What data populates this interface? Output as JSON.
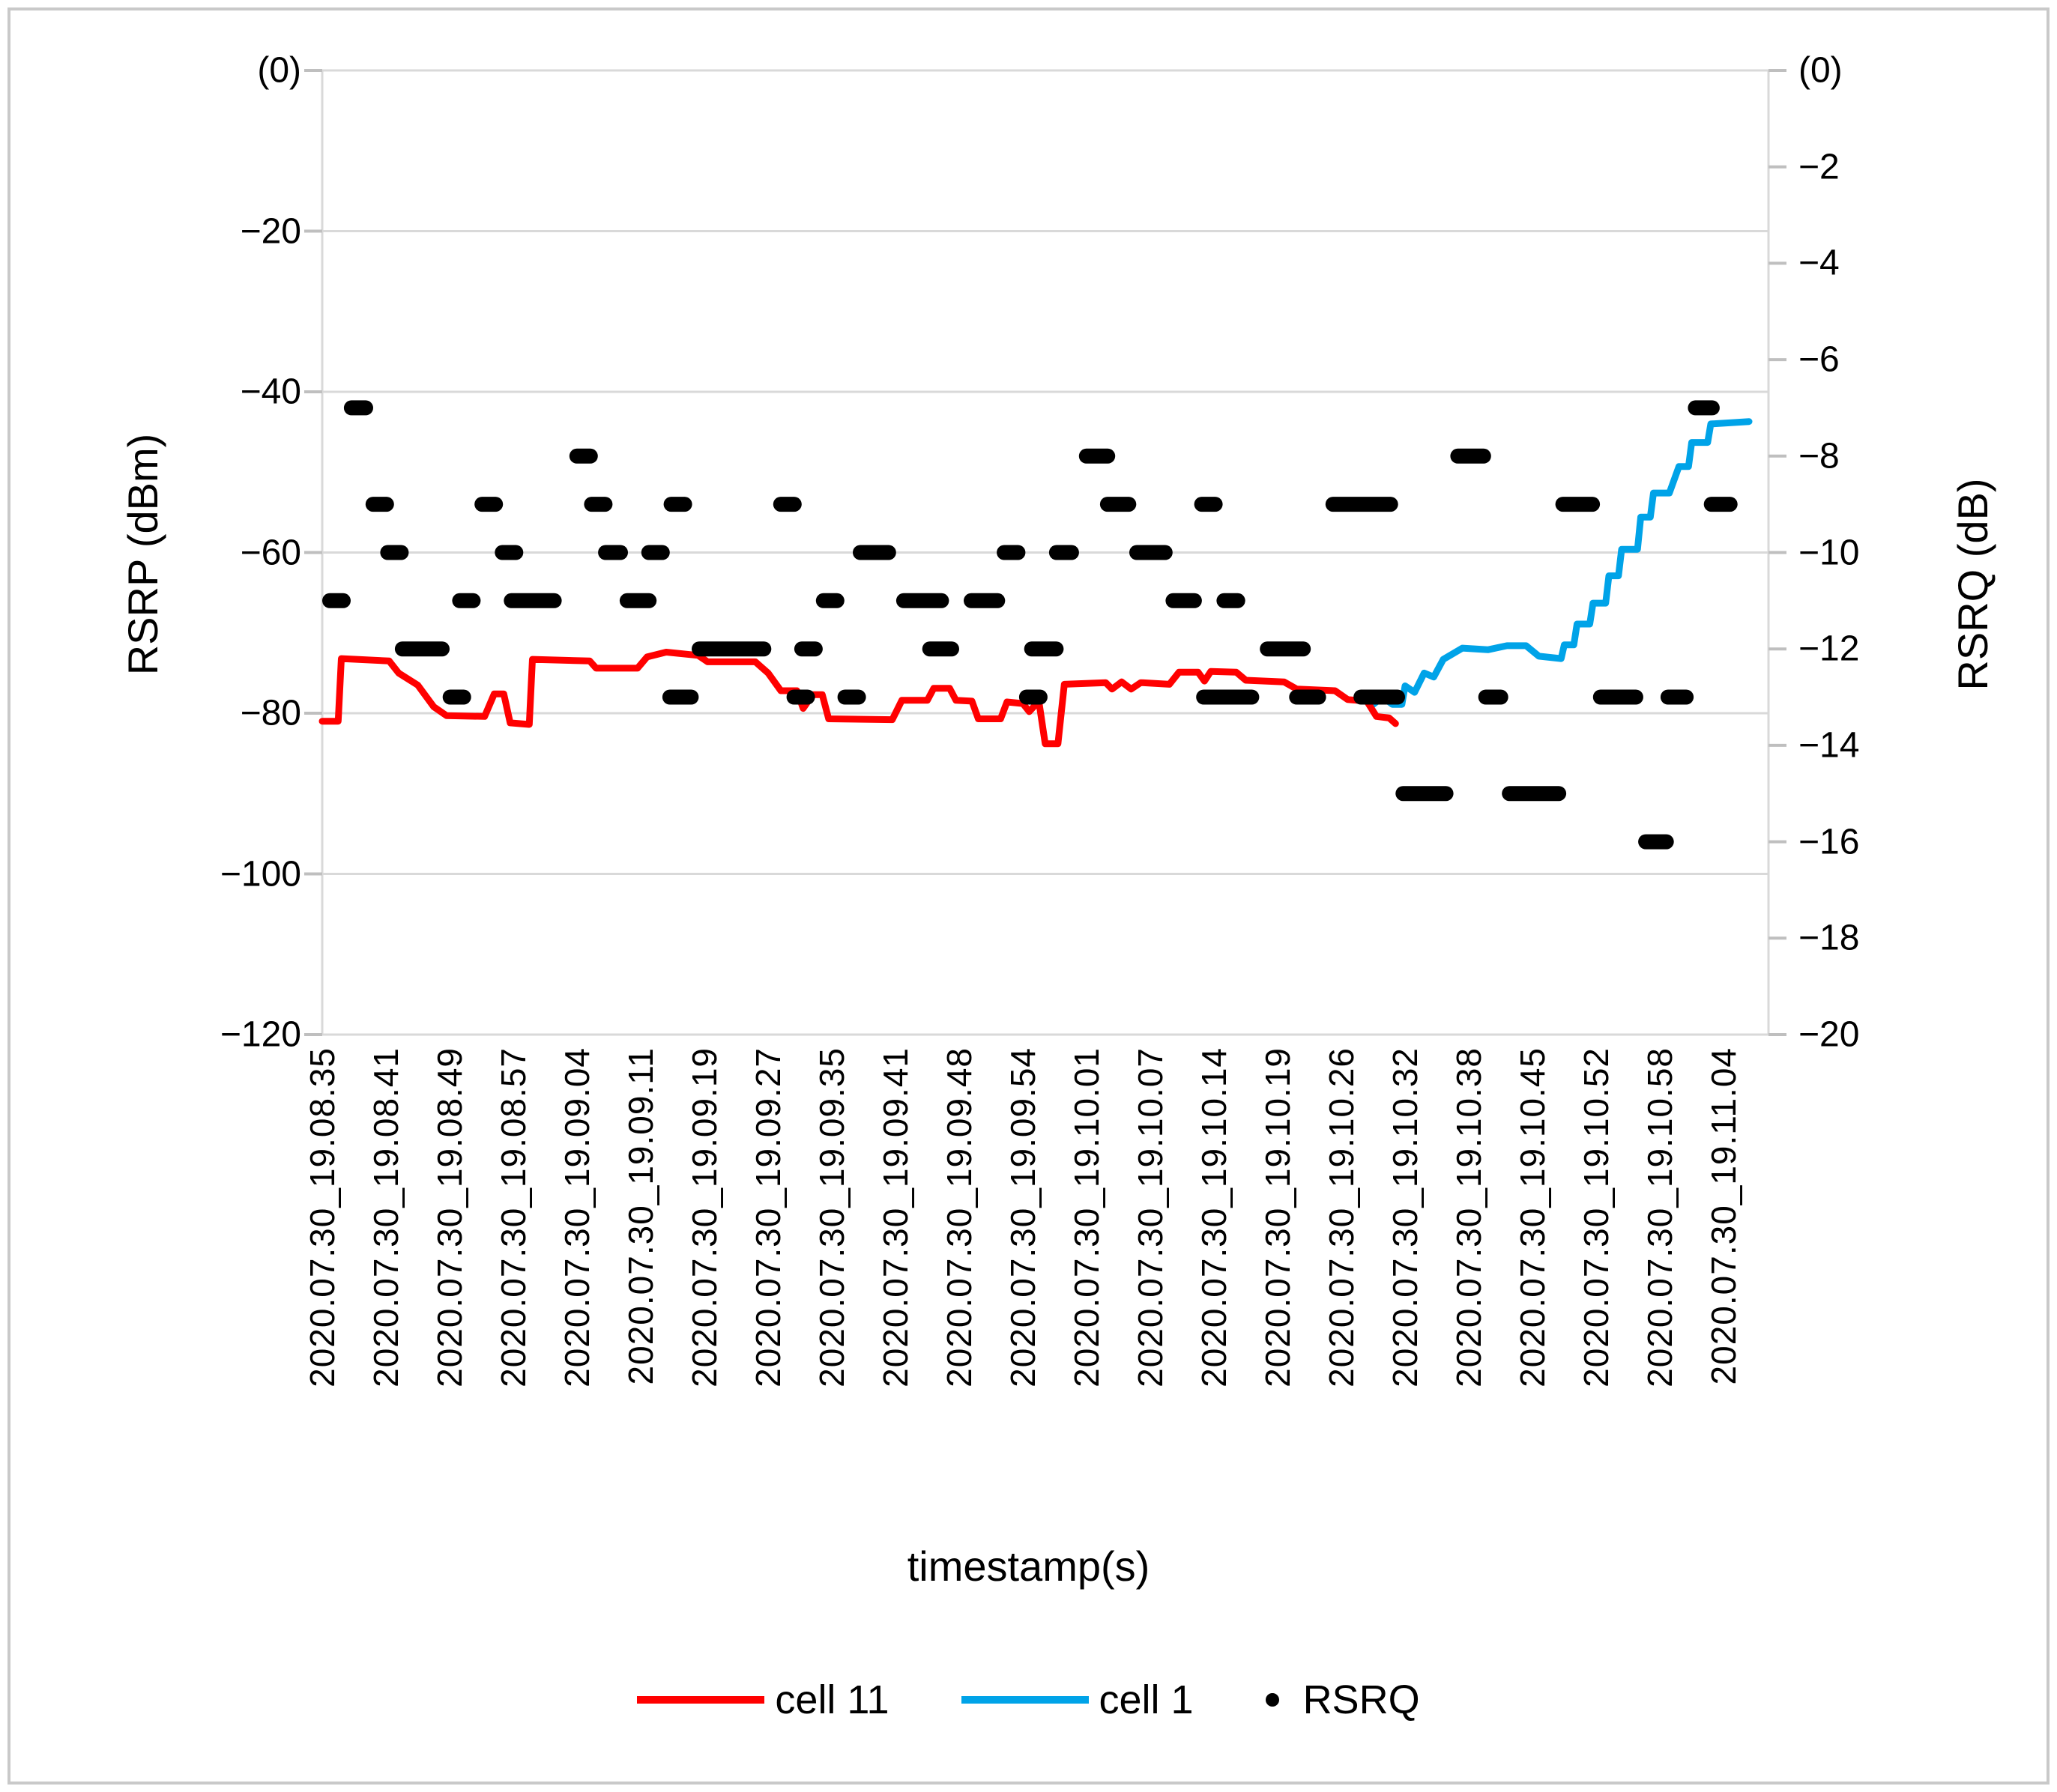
{
  "chart_data": {
    "type": "line",
    "title": "",
    "x_axis": {
      "label": "timestamp(s)",
      "categories": [
        "2020.07.30_19.08.35",
        "2020.07.30_19.08.41",
        "2020.07.30_19.08.49",
        "2020.07.30_19.08.57",
        "2020.07.30_19.09.04",
        "2020.07.30_19.09.11",
        "2020.07.30_19.09.19",
        "2020.07.30_19.09.27",
        "2020.07.30_19.09.35",
        "2020.07.30_19.09.41",
        "2020.07.30_19.09.48",
        "2020.07.30_19.09.54",
        "2020.07.30_19.10.01",
        "2020.07.30_19.10.07",
        "2020.07.30_19.10.14",
        "2020.07.30_19.10.19",
        "2020.07.30_19.10.26",
        "2020.07.30_19.10.32",
        "2020.07.30_19.10.38",
        "2020.07.30_19.10.45",
        "2020.07.30_19.10.52",
        "2020.07.30_19.10.58",
        "2020.07.30_19.11.04"
      ]
    },
    "y_left_axis": {
      "label": "RSRP (dBm)",
      "ticks": [
        "(0)",
        "−20",
        "−40",
        "−60",
        "−80",
        "−100",
        "−120"
      ],
      "range_top": 0,
      "range_bottom": -120,
      "grid": true
    },
    "y_right_axis": {
      "label": "RSRQ (dB)",
      "ticks": [
        "(0)",
        "−2",
        "−4",
        "−6",
        "−8",
        "−10",
        "−12",
        "−14",
        "−16",
        "−18",
        "−20"
      ],
      "range_top": 0,
      "range_bottom": -20,
      "grid": false
    },
    "colors": {
      "cell11": "#FF0000",
      "cell1": "#00A3E8",
      "rsrq_dots": "#000000",
      "gridline": "#D9D9D9",
      "frame": "#D9D9D9",
      "tick": "#BFBFBF"
    },
    "series": [
      {
        "name": "cell 11",
        "axis": "left",
        "kind": "line",
        "color_key": "cell11",
        "points": [
          [
            0,
            -81
          ],
          [
            0.25,
            -81
          ],
          [
            0.3,
            -73.2
          ],
          [
            1.05,
            -73.5
          ],
          [
            1.2,
            -75
          ],
          [
            1.5,
            -76.5
          ],
          [
            1.75,
            -79.2
          ],
          [
            1.95,
            -80.3
          ],
          [
            2.55,
            -80.4
          ],
          [
            2.7,
            -77.6
          ],
          [
            2.85,
            -77.6
          ],
          [
            2.95,
            -81.2
          ],
          [
            3.25,
            -81.4
          ],
          [
            3.3,
            -73.3
          ],
          [
            4.2,
            -73.5
          ],
          [
            4.3,
            -74.4
          ],
          [
            4.95,
            -74.4
          ],
          [
            5.1,
            -73
          ],
          [
            5.4,
            -72.4
          ],
          [
            5.9,
            -72.8
          ],
          [
            6.05,
            -73.6
          ],
          [
            6.8,
            -73.6
          ],
          [
            7.0,
            -75
          ],
          [
            7.2,
            -77.2
          ],
          [
            7.45,
            -77.2
          ],
          [
            7.55,
            -79.4
          ],
          [
            7.7,
            -77.7
          ],
          [
            7.85,
            -77.7
          ],
          [
            7.95,
            -80.7
          ],
          [
            8.95,
            -80.8
          ],
          [
            9.1,
            -78.4
          ],
          [
            9.5,
            -78.4
          ],
          [
            9.6,
            -76.9
          ],
          [
            9.85,
            -76.9
          ],
          [
            9.95,
            -78.4
          ],
          [
            10.2,
            -78.5
          ],
          [
            10.3,
            -80.7
          ],
          [
            10.65,
            -80.7
          ],
          [
            10.75,
            -78.6
          ],
          [
            11.0,
            -78.8
          ],
          [
            11.1,
            -79.8
          ],
          [
            11.25,
            -78.5
          ],
          [
            11.35,
            -83.8
          ],
          [
            11.55,
            -83.8
          ],
          [
            11.65,
            -76.4
          ],
          [
            12.3,
            -76.2
          ],
          [
            12.4,
            -77
          ],
          [
            12.55,
            -76.1
          ],
          [
            12.7,
            -77
          ],
          [
            12.85,
            -76.2
          ],
          [
            13.3,
            -76.4
          ],
          [
            13.45,
            -74.9
          ],
          [
            13.75,
            -74.9
          ],
          [
            13.85,
            -76
          ],
          [
            13.95,
            -74.8
          ],
          [
            14.35,
            -74.9
          ],
          [
            14.5,
            -75.9
          ],
          [
            15.1,
            -76.1
          ],
          [
            15.3,
            -77
          ],
          [
            15.9,
            -77.2
          ],
          [
            16.1,
            -78.3
          ],
          [
            16.4,
            -78.5
          ],
          [
            16.55,
            -80.4
          ],
          [
            16.75,
            -80.6
          ],
          [
            16.85,
            -81.3
          ]
        ]
      },
      {
        "name": "cell 1",
        "axis": "left",
        "kind": "line",
        "color_key": "cell1",
        "points": [
          [
            16.3,
            -78.2
          ],
          [
            16.5,
            -78.9
          ],
          [
            16.65,
            -78.0
          ],
          [
            16.8,
            -78.9
          ],
          [
            16.95,
            -78.9
          ],
          [
            17.0,
            -76.6
          ],
          [
            17.15,
            -77.4
          ],
          [
            17.3,
            -75.0
          ],
          [
            17.45,
            -75.5
          ],
          [
            17.6,
            -73.3
          ],
          [
            17.9,
            -71.9
          ],
          [
            18.3,
            -72.1
          ],
          [
            18.6,
            -71.6
          ],
          [
            18.9,
            -71.6
          ],
          [
            19.1,
            -72.9
          ],
          [
            19.45,
            -73.2
          ],
          [
            19.5,
            -71.5
          ],
          [
            19.65,
            -71.5
          ],
          [
            19.7,
            -68.9
          ],
          [
            19.9,
            -68.9
          ],
          [
            19.95,
            -66.3
          ],
          [
            20.15,
            -66.3
          ],
          [
            20.2,
            -62.9
          ],
          [
            20.35,
            -62.9
          ],
          [
            20.4,
            -59.6
          ],
          [
            20.65,
            -59.6
          ],
          [
            20.7,
            -55.6
          ],
          [
            20.85,
            -55.6
          ],
          [
            20.9,
            -52.6
          ],
          [
            21.15,
            -52.6
          ],
          [
            21.3,
            -49.3
          ],
          [
            21.45,
            -49.3
          ],
          [
            21.5,
            -46.3
          ],
          [
            21.75,
            -46.3
          ],
          [
            21.8,
            -44.0
          ],
          [
            22.4,
            -43.7
          ]
        ]
      },
      {
        "name": "RSRQ",
        "axis": "right",
        "kind": "scatter-dash",
        "color_key": "rsrq_dots",
        "dashes": [
          [
            0.34,
            0.8,
            -7
          ],
          [
            21.44,
            21.94,
            -7
          ],
          [
            3.88,
            4.26,
            -8
          ],
          [
            11.88,
            12.45,
            -8
          ],
          [
            17.71,
            18.35,
            -8
          ],
          [
            0.68,
            1.04,
            -9
          ],
          [
            2.39,
            2.74,
            -9
          ],
          [
            4.11,
            4.45,
            -9
          ],
          [
            5.36,
            5.6,
            -9
          ],
          [
            7.08,
            7.41,
            -9
          ],
          [
            12.21,
            12.78,
            -9
          ],
          [
            13.69,
            14.04,
            -9
          ],
          [
            15.75,
            16.89,
            -9
          ],
          [
            19.36,
            20.06,
            -9
          ],
          [
            21.69,
            22.22,
            -9
          ],
          [
            0.91,
            1.14,
            -10
          ],
          [
            2.71,
            2.94,
            -10
          ],
          [
            4.33,
            4.8,
            -10
          ],
          [
            5.01,
            5.36,
            -10
          ],
          [
            8.33,
            9.01,
            -10
          ],
          [
            10.59,
            11.04,
            -10
          ],
          [
            11.41,
            11.88,
            -10
          ],
          [
            12.67,
            13.35,
            -10
          ],
          [
            0.0,
            0.35,
            -11
          ],
          [
            2.04,
            2.39,
            -11
          ],
          [
            2.85,
            3.76,
            -11
          ],
          [
            4.67,
            5.25,
            -11
          ],
          [
            7.75,
            8.09,
            -11
          ],
          [
            9.01,
            9.84,
            -11
          ],
          [
            10.07,
            10.72,
            -11
          ],
          [
            13.24,
            13.81,
            -11
          ],
          [
            14.04,
            14.49,
            -11
          ],
          [
            1.14,
            2.0,
            -12
          ],
          [
            5.8,
            7.05,
            -12
          ],
          [
            7.41,
            7.75,
            -12
          ],
          [
            9.42,
            10.0,
            -12
          ],
          [
            11.02,
            11.64,
            -12
          ],
          [
            14.72,
            15.52,
            -12
          ],
          [
            1.89,
            2.24,
            -13
          ],
          [
            5.34,
            5.91,
            -13
          ],
          [
            7.29,
            7.65,
            -13
          ],
          [
            8.09,
            8.45,
            -13
          ],
          [
            10.94,
            11.29,
            -13
          ],
          [
            13.72,
            14.71,
            -13
          ],
          [
            15.18,
            15.76,
            -13
          ],
          [
            16.19,
            17.0,
            -13
          ],
          [
            18.15,
            18.62,
            -13
          ],
          [
            19.95,
            20.74,
            -13
          ],
          [
            21.01,
            21.53,
            -13
          ],
          [
            16.85,
            17.76,
            -15
          ],
          [
            18.52,
            19.53,
            -15
          ],
          [
            20.66,
            21.22,
            -16
          ]
        ]
      }
    ],
    "legend": {
      "position": "bottom",
      "entries": [
        "cell 11",
        "cell 1",
        "RSRQ"
      ]
    }
  }
}
